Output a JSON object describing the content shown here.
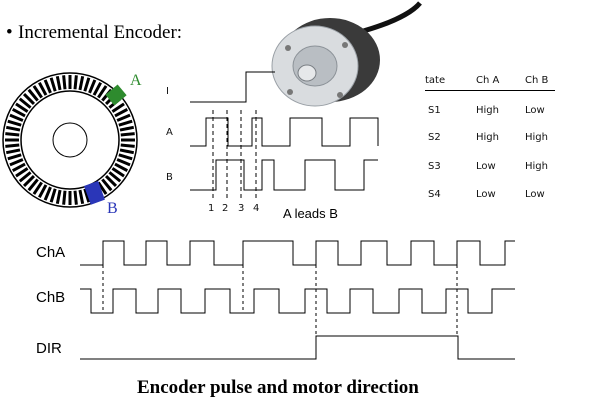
{
  "header": {
    "bullet": "•",
    "title": "Incremental Encoder:"
  },
  "disk": {
    "sensor_a_label": "A",
    "sensor_b_label": "B",
    "sensor_a_color": "#2e8b2e",
    "sensor_b_color": "#2a36b8"
  },
  "small_timing": {
    "row_labels": [
      "I",
      "A",
      "B"
    ],
    "tick_labels": [
      "1",
      "2",
      "3",
      "4"
    ],
    "caption": "A leads B"
  },
  "state_table": {
    "headers": [
      "tate",
      "Ch A",
      "Ch B"
    ],
    "rows": [
      [
        "S1",
        "High",
        "Low"
      ],
      [
        "S2",
        "High",
        "High"
      ],
      [
        "S3",
        "Low",
        "High"
      ],
      [
        "S4",
        "Low",
        "Low"
      ]
    ]
  },
  "big_timing": {
    "labels": [
      "ChA",
      "ChB",
      "DIR"
    ]
  },
  "footer": {
    "caption": "Encoder pulse and motor direction"
  }
}
